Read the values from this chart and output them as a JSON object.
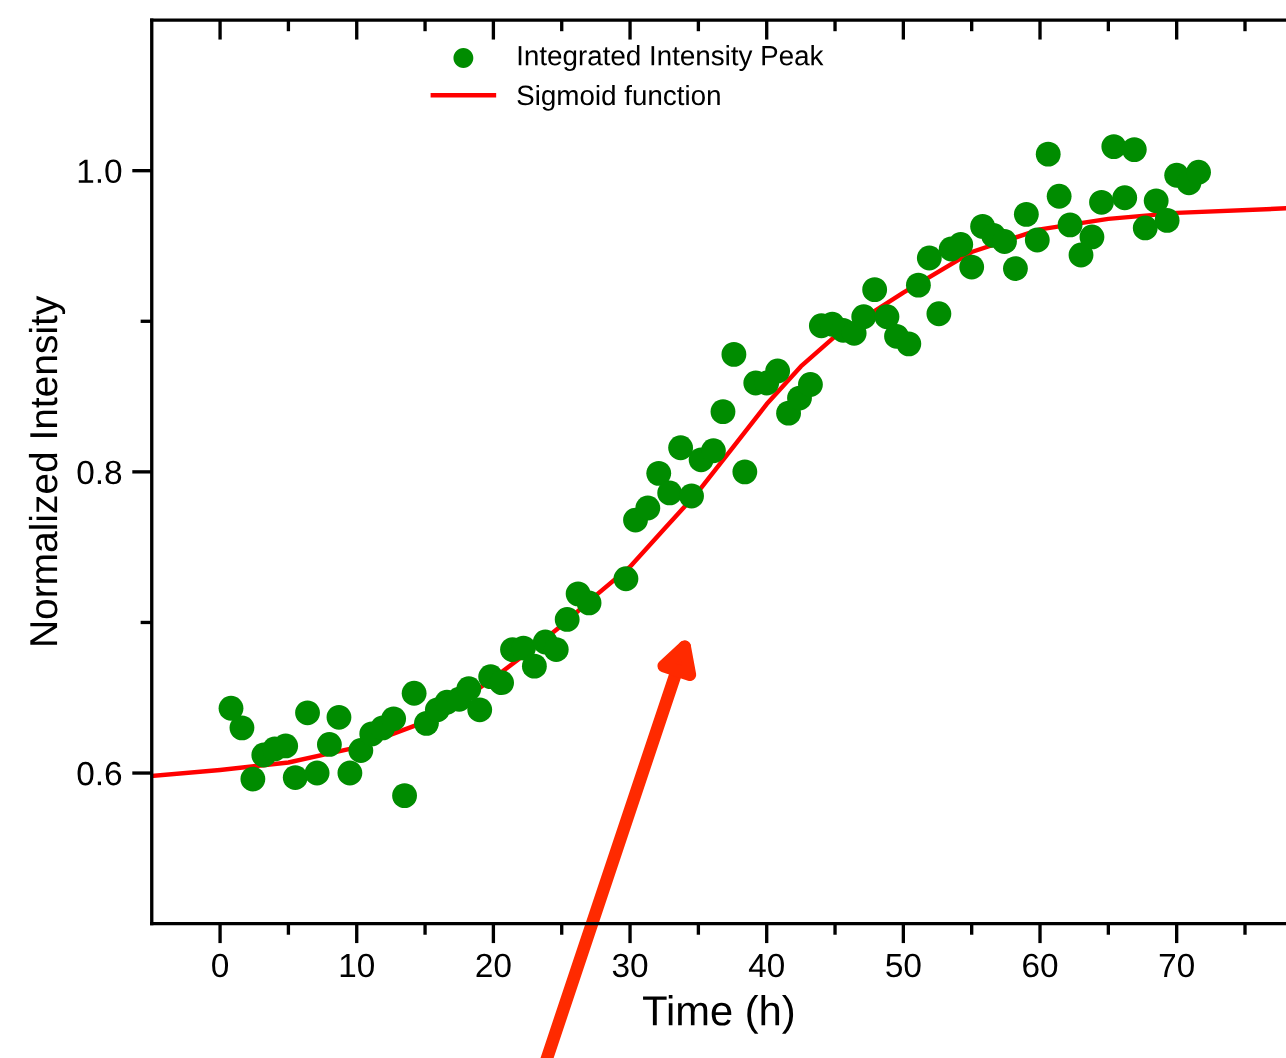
{
  "chart_data": {
    "type": "scatter",
    "xlabel": "Time (h)",
    "ylabel": "Normalized Intensity",
    "xlim": [
      -5,
      78
    ],
    "ylim": [
      0.5,
      1.1
    ],
    "xticks": [
      0,
      {
        "value": 5,
        "label": null
      },
      10,
      {
        "value": 15,
        "label": null
      },
      20,
      {
        "value": 25,
        "label": null
      },
      30,
      {
        "value": 35,
        "label": null
      },
      40,
      {
        "value": 45,
        "label": null
      },
      50,
      {
        "value": 55,
        "label": null
      },
      60,
      {
        "value": 65,
        "label": null
      },
      70,
      {
        "value": 75,
        "label": null
      }
    ],
    "yticks": [
      {
        "value": 0.6,
        "label": "0.6"
      },
      {
        "value": 0.7,
        "label": null
      },
      {
        "value": 0.8,
        "label": "0.8"
      },
      {
        "value": 0.9,
        "label": null
      },
      {
        "value": 1.0,
        "label": "1.0"
      }
    ],
    "grid": false,
    "legend": "top",
    "marker": "circle",
    "series": [
      {
        "name": "Integrated Intensity Peak",
        "color": "#008c00",
        "x": [
          0.8,
          1.6,
          2.4,
          3.2,
          4.0,
          4.8,
          5.5,
          6.4,
          7.1,
          8.0,
          8.7,
          9.5,
          10.3,
          11.1,
          11.9,
          12.7,
          13.5,
          14.2,
          15.1,
          15.9,
          16.6,
          17.5,
          18.2,
          19.0,
          19.8,
          20.6,
          21.4,
          22.2,
          23.0,
          23.8,
          24.6,
          25.4,
          26.2,
          27.0,
          29.7,
          30.4,
          31.3,
          32.1,
          32.9,
          33.7,
          34.5,
          35.2,
          36.1,
          36.8,
          37.6,
          38.4,
          39.2,
          40.0,
          40.8,
          41.6,
          42.4,
          43.2,
          44.0,
          44.8,
          45.6,
          46.4,
          47.1,
          47.9,
          48.8,
          49.5,
          50.4,
          51.1,
          51.9,
          52.6,
          53.5,
          54.2,
          55.0,
          55.8,
          56.6,
          57.4,
          58.2,
          59.0,
          59.8,
          60.6,
          61.4,
          62.2,
          63.0,
          63.8,
          64.5,
          65.4,
          66.2,
          66.9,
          67.7,
          68.5,
          69.3,
          70.0,
          70.9,
          71.6
        ],
        "values": [
          0.643,
          0.63,
          0.596,
          0.612,
          0.616,
          0.618,
          0.597,
          0.64,
          0.6,
          0.619,
          0.637,
          0.6,
          0.615,
          0.626,
          0.63,
          0.636,
          0.585,
          0.653,
          0.633,
          0.642,
          0.647,
          0.649,
          0.656,
          0.642,
          0.664,
          0.66,
          0.682,
          0.683,
          0.671,
          0.687,
          0.682,
          0.702,
          0.719,
          0.713,
          0.729,
          0.768,
          0.776,
          0.799,
          0.786,
          0.816,
          0.784,
          0.808,
          0.814,
          0.84,
          0.878,
          0.8,
          0.859,
          0.859,
          0.867,
          0.839,
          0.849,
          0.858,
          0.897,
          0.898,
          0.894,
          0.892,
          0.903,
          0.921,
          0.903,
          0.89,
          0.885,
          0.924,
          0.942,
          0.905,
          0.948,
          0.951,
          0.936,
          0.963,
          0.957,
          0.953,
          0.935,
          0.971,
          0.954,
          1.011,
          0.983,
          0.964,
          0.944,
          0.956,
          0.979,
          1.016,
          0.982,
          1.014,
          0.962,
          0.98,
          0.967,
          0.997,
          0.992,
          0.999
        ]
      },
      {
        "name": "Sigmoid function",
        "type": "line",
        "color": "#ff0000",
        "marker": "none",
        "line_style": "solid",
        "x": [
          -5,
          0,
          5,
          10,
          15,
          17.5,
          20,
          22.5,
          25,
          27.5,
          30,
          32.5,
          35,
          37.5,
          40,
          42.5,
          45,
          50,
          55,
          60,
          65,
          70,
          78
        ],
        "values": [
          0.598,
          0.602,
          0.607,
          0.617,
          0.634,
          0.647,
          0.663,
          0.68,
          0.698,
          0.718,
          0.737,
          0.762,
          0.787,
          0.816,
          0.845,
          0.87,
          0.89,
          0.919,
          0.946,
          0.961,
          0.968,
          0.972,
          0.975
        ]
      }
    ]
  }
}
